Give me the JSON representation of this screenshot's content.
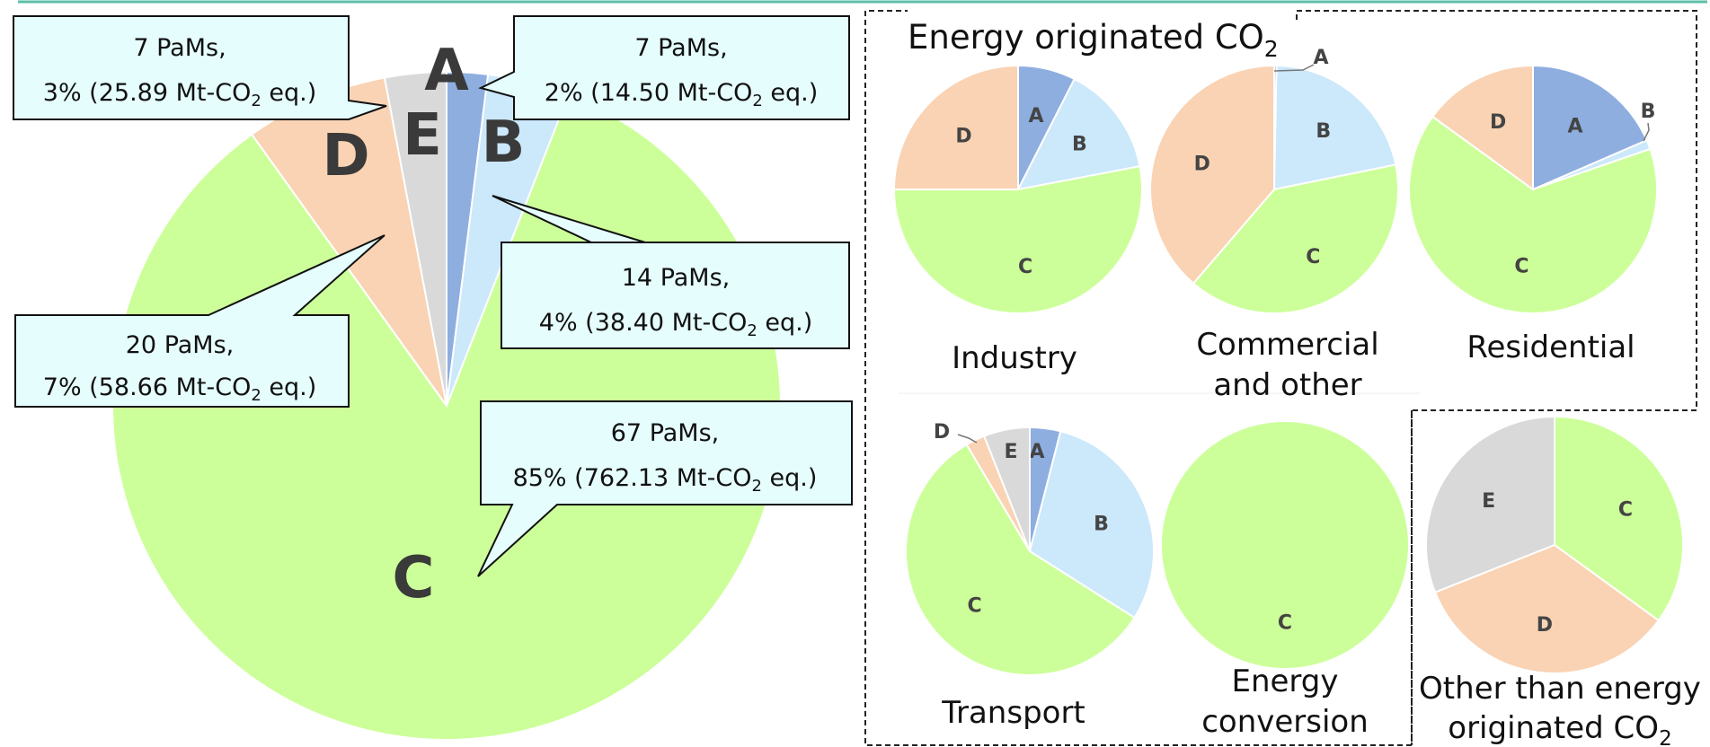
{
  "colors": {
    "A": "#8eaee0",
    "B": "#cce8fb",
    "C": "#ccff99",
    "D": "#f9d3b4",
    "E": "#d9d9d9",
    "callout_fill": "#e6fdfd",
    "top_rule": "#5dbfa8"
  },
  "chart_data": [
    {
      "type": "pie",
      "id": "main",
      "categories": [
        "A",
        "B",
        "C",
        "D",
        "E"
      ],
      "values": [
        2,
        4,
        85,
        7,
        3
      ],
      "slice_labels": [
        "A",
        "B",
        "C",
        "D",
        "E"
      ],
      "annotations": [
        {
          "category": "E",
          "line1": "7 PaMs,",
          "line2_pre": "3% (25.89 Mt-CO",
          "line2_sub": "2",
          "line2_post": " eq.)"
        },
        {
          "category": "A",
          "line1": "7 PaMs,",
          "line2_pre": "2% (14.50 Mt-CO",
          "line2_sub": "2",
          "line2_post": " eq.)"
        },
        {
          "category": "B",
          "line1": "14    PaMs,",
          "line2_pre": "4% (38.40 Mt-CO",
          "line2_sub": "2",
          "line2_post": " eq.)"
        },
        {
          "category": "D",
          "line1": "20    PaMs,",
          "line2_pre": "7% (58.66 Mt-CO",
          "line2_sub": "2",
          "line2_post": " eq.)"
        },
        {
          "category": "C",
          "line1": "67    PaMs,",
          "line2_pre": "85% (762.13 Mt-CO",
          "line2_sub": "2",
          "line2_post": " eq.)"
        }
      ]
    },
    {
      "type": "pie",
      "id": "industry",
      "title": "Industry",
      "categories": [
        "A",
        "B",
        "C",
        "D"
      ],
      "values": [
        7.5,
        14.5,
        53,
        25
      ],
      "slice_labels": [
        "A",
        "B",
        "C",
        "D"
      ]
    },
    {
      "type": "pie",
      "id": "commercial",
      "title": "Commercial and other",
      "categories": [
        "A",
        "B",
        "C",
        "D"
      ],
      "values": [
        0.3,
        21.5,
        39.5,
        38.7
      ],
      "slice_labels": [
        "A",
        "B",
        "C",
        "D"
      ]
    },
    {
      "type": "pie",
      "id": "residential",
      "title": "Residential",
      "categories": [
        "A",
        "B",
        "C",
        "D"
      ],
      "values": [
        18.5,
        1.2,
        65.3,
        15
      ],
      "slice_labels": [
        "A",
        "B",
        "C",
        "D"
      ]
    },
    {
      "type": "pie",
      "id": "transport",
      "title": "Transport",
      "categories": [
        "A",
        "B",
        "C",
        "D",
        "E"
      ],
      "values": [
        4,
        30,
        57.5,
        2.5,
        6
      ],
      "slice_labels": [
        "A",
        "B",
        "C",
        "D",
        "E"
      ]
    },
    {
      "type": "pie",
      "id": "energy_conversion",
      "title": "Energy conversion",
      "categories": [
        "C"
      ],
      "values": [
        100
      ],
      "slice_labels": [
        "C"
      ]
    },
    {
      "type": "pie",
      "id": "other",
      "title": "Other than energy originated CO2",
      "categories": [
        "C",
        "D",
        "E"
      ],
      "values": [
        35,
        34,
        31
      ],
      "slice_labels": [
        "C",
        "D",
        "E"
      ]
    }
  ],
  "labels": {
    "energy_group_title_pre": "Energy originated CO",
    "energy_group_title_sub": "2",
    "industry_line1": "Industry",
    "commercial_line1": "Commercial",
    "commercial_line2": "and other",
    "residential_line1": "Residential",
    "transport_line1": "Transport",
    "energy_conversion_line1": "Energy",
    "energy_conversion_line2": "conversion",
    "other_line1": "Other than energy",
    "other_line2_pre": "originated CO",
    "other_line2_sub": "2"
  }
}
